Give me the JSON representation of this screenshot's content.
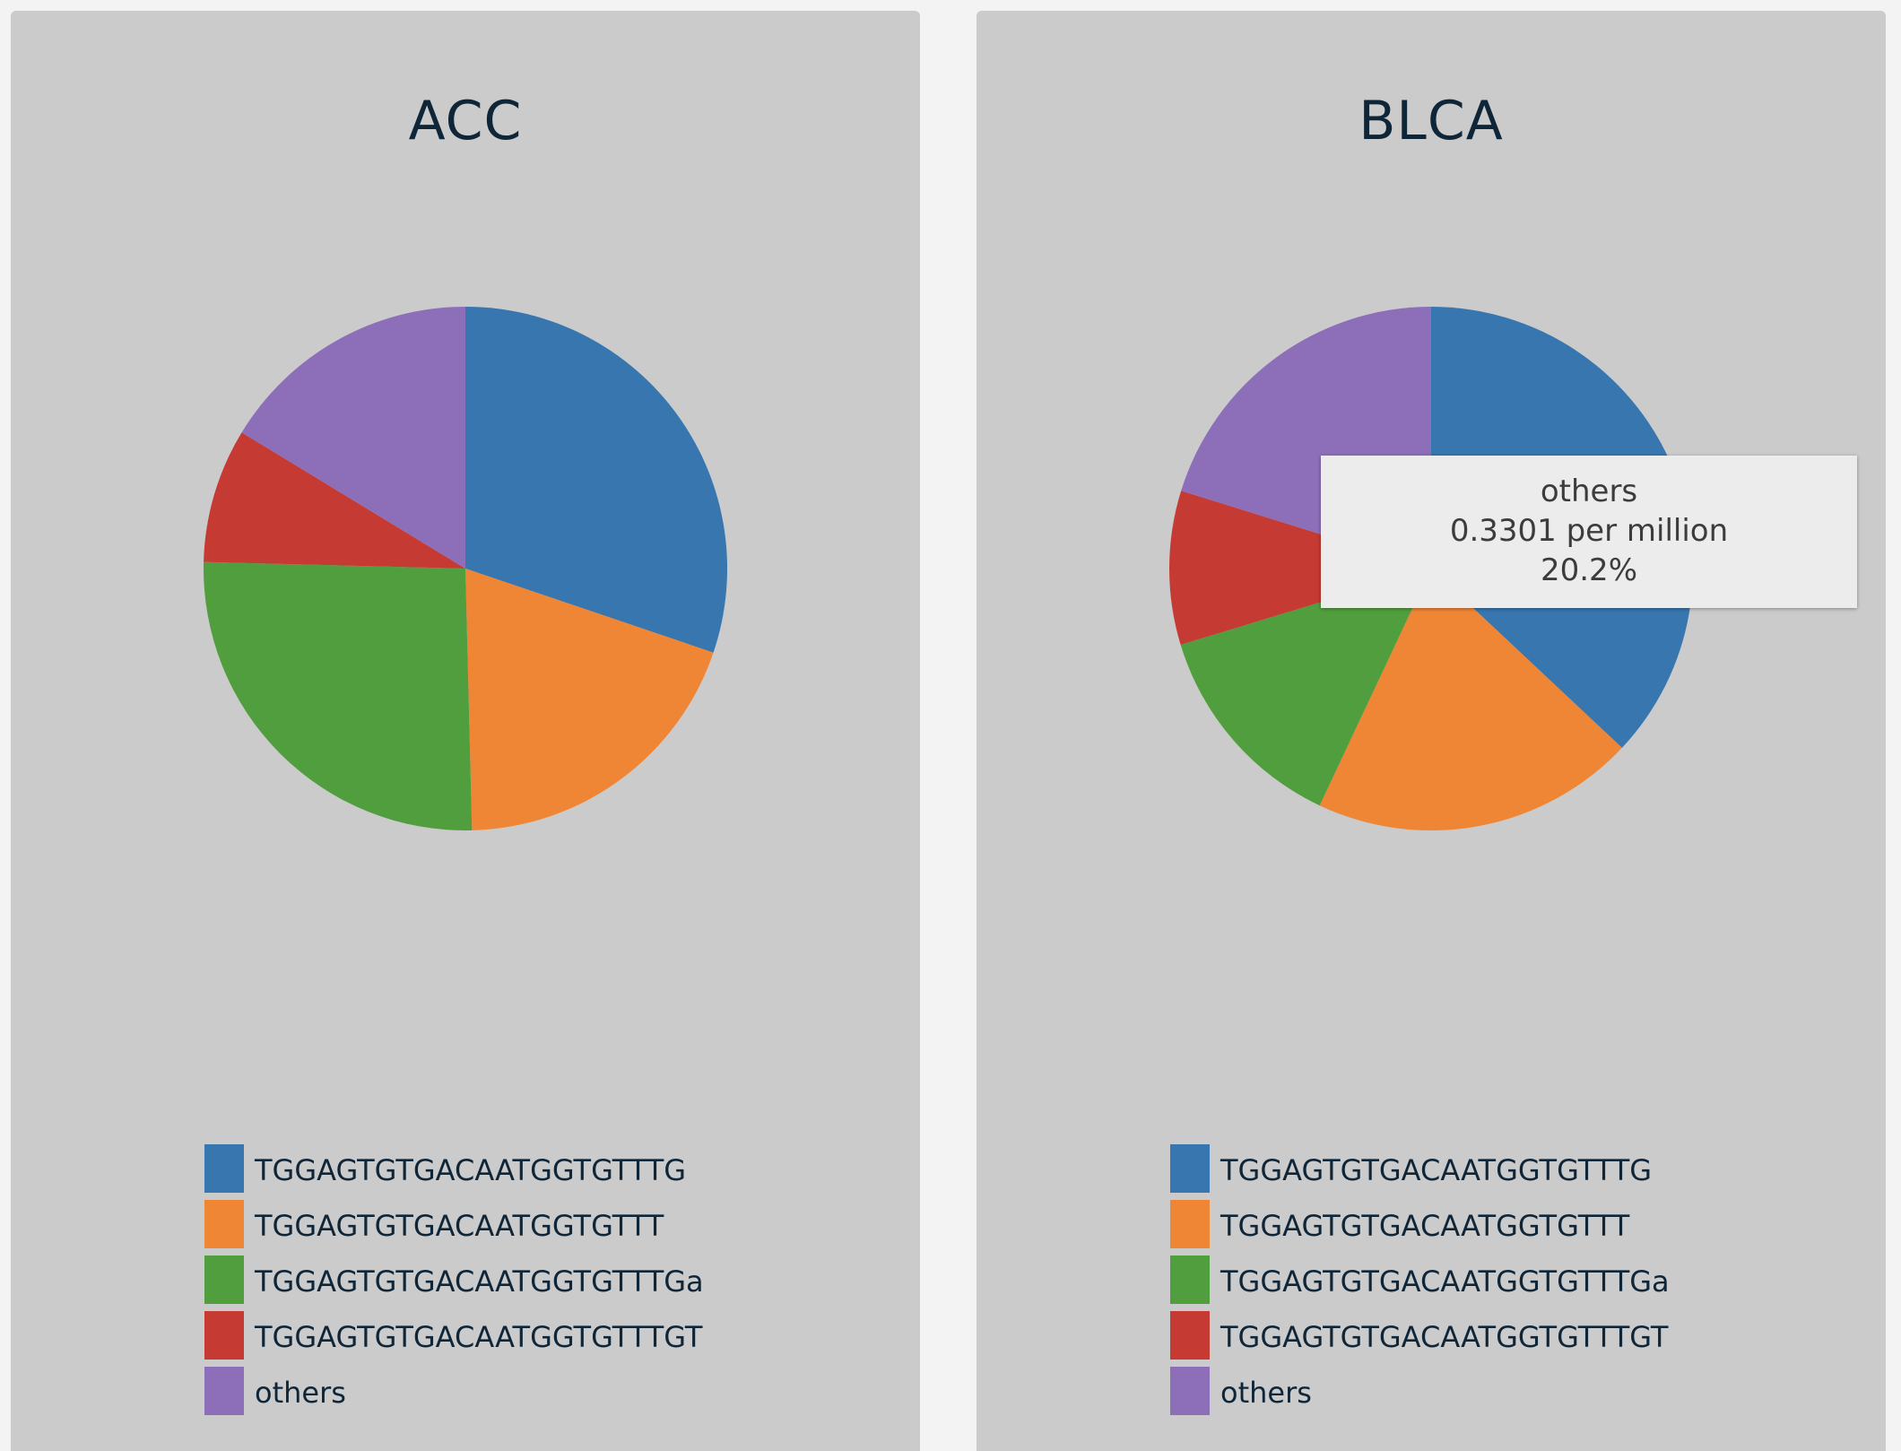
{
  "panels": [
    {
      "title": "ACC",
      "legend": [
        {
          "label": "TGGAGTGTGACAATGGTGTTTG",
          "color": "#3776ae"
        },
        {
          "label": "TGGAGTGTGACAATGGTGTTT",
          "color": "#ef8636"
        },
        {
          "label": "TGGAGTGTGACAATGGTGTTTGa",
          "color": "#519e3e"
        },
        {
          "label": "TGGAGTGTGACAATGGTGTTTGT",
          "color": "#c53a33"
        },
        {
          "label": "others",
          "color": "#8d6fb9"
        }
      ]
    },
    {
      "title": "BLCA",
      "legend": [
        {
          "label": "TGGAGTGTGACAATGGTGTTTG",
          "color": "#3776ae"
        },
        {
          "label": "TGGAGTGTGACAATGGTGTTT",
          "color": "#ef8636"
        },
        {
          "label": "TGGAGTGTGACAATGGTGTTTGa",
          "color": "#519e3e"
        },
        {
          "label": "TGGAGTGTGACAATGGTGTTTGT",
          "color": "#c53a33"
        },
        {
          "label": "others",
          "color": "#8d6fb9"
        }
      ],
      "tooltip": {
        "series": "others",
        "value": "0.3301 per million",
        "percent": "20.2%"
      }
    }
  ],
  "chart_data": [
    {
      "type": "pie",
      "title": "ACC",
      "categories": [
        "TGGAGTGTGACAATGGTGTTTG",
        "TGGAGTGTGACAATGGTGTTT",
        "TGGAGTGTGACAATGGTGTTTGa",
        "TGGAGTGTGACAATGGTGTTTGT",
        "others"
      ],
      "values": [
        30.2,
        19.4,
        25.8,
        8.3,
        16.3
      ],
      "colors": [
        "#3776ae",
        "#ef8636",
        "#519e3e",
        "#c53a33",
        "#8d6fb9"
      ],
      "legend": "bottom"
    },
    {
      "type": "pie",
      "title": "BLCA",
      "categories": [
        "TGGAGTGTGACAATGGTGTTTG",
        "TGGAGTGTGACAATGGTGTTT",
        "TGGAGTGTGACAATGGTGTTTGa",
        "TGGAGTGTGACAATGGTGTTTGT",
        "others"
      ],
      "values": [
        37.0,
        20.0,
        13.3,
        9.5,
        20.2
      ],
      "colors": [
        "#3776ae",
        "#ef8636",
        "#519e3e",
        "#c53a33",
        "#8d6fb9"
      ],
      "legend": "bottom"
    }
  ]
}
